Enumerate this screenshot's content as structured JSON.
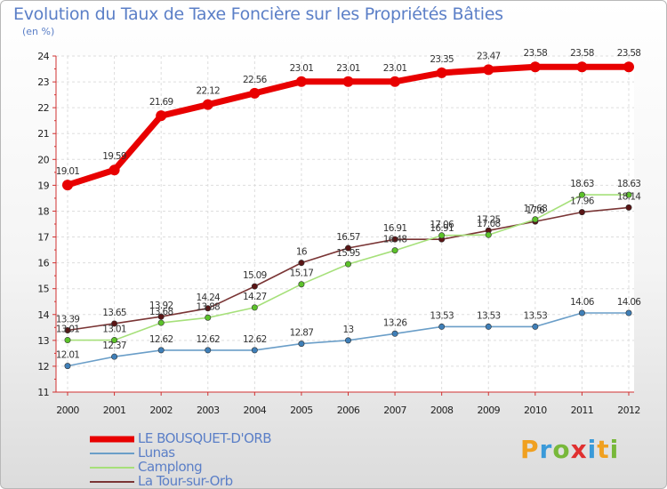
{
  "page": {
    "title": "Evolution du Taux de Taxe Foncière sur les Propriétés Bâties",
    "unit": "(en %)"
  },
  "brand": {
    "text": "Proxiti",
    "colors": [
      "#f0a020",
      "#3a9ad9",
      "#78b83a",
      "#e03030",
      "#3a9ad9",
      "#f0a020",
      "#78b83a"
    ]
  },
  "chart_data": {
    "type": "line",
    "title": "Evolution du Taux de Taxe Foncière sur les Propriétés Bâties",
    "ylabel": "(en %)",
    "xlabel": "",
    "ylim": [
      11,
      24
    ],
    "yticks": [
      11,
      12,
      13,
      14,
      15,
      16,
      17,
      18,
      19,
      20,
      21,
      22,
      23,
      24
    ],
    "x": [
      "2000",
      "2001",
      "2002",
      "2003",
      "2004",
      "2005",
      "2006",
      "2007",
      "2008",
      "2009",
      "2010",
      "2011",
      "2012"
    ],
    "grid": true,
    "series": [
      {
        "name": "LE BOUSQUET-D'ORB",
        "color": "#e80000",
        "marker": "#e80000",
        "values": [
          19.01,
          19.59,
          21.69,
          22.12,
          22.56,
          23.01,
          23.01,
          23.01,
          23.35,
          23.47,
          23.58,
          23.58,
          23.58
        ],
        "labels": [
          "19.01",
          "19.59",
          "21.69",
          "22.12",
          "22.56",
          "23.01",
          "23.01",
          "23.01",
          "23.35",
          "23.47",
          "23.58",
          "23.58",
          "23.58"
        ]
      },
      {
        "name": "Lunas",
        "color": "#6a9ec8",
        "marker": "#3f7fb8",
        "values": [
          12.01,
          12.37,
          12.62,
          12.62,
          12.62,
          12.87,
          13,
          13.26,
          13.53,
          13.53,
          13.53,
          14.06,
          14.06
        ],
        "labels": [
          "12.01",
          "12.37",
          "12.62",
          "12.62",
          "12.62",
          "12.87",
          "13",
          "13.26",
          "13.53",
          "13.53",
          "13.53",
          "14.06",
          "14.06"
        ]
      },
      {
        "name": "Camplong",
        "color": "#a6e07a",
        "marker": "#5cc22a",
        "values": [
          13.01,
          13.01,
          13.68,
          13.88,
          14.27,
          15.17,
          15.95,
          16.48,
          17.06,
          17.08,
          17.68,
          18.63,
          18.63
        ],
        "labels": [
          "13.01",
          "13.01",
          "13.68",
          "13.88",
          "14.27",
          "15.17",
          "15.95",
          "16.48",
          "17.06",
          "17.08",
          "17.68",
          "18.63",
          "18.63"
        ]
      },
      {
        "name": "La Tour-sur-Orb",
        "color": "#7a3535",
        "marker": "#5a1515",
        "values": [
          13.39,
          13.65,
          13.92,
          14.24,
          15.09,
          16,
          16.57,
          16.91,
          16.91,
          17.25,
          17.6,
          17.96,
          18.14
        ],
        "labels": [
          "13.39",
          "13.65",
          "13.92",
          "14.24",
          "15.09",
          "16",
          "16.57",
          "16.91",
          "16.91",
          "17.25",
          "17.6",
          "17.96",
          "18.14"
        ]
      }
    ]
  }
}
